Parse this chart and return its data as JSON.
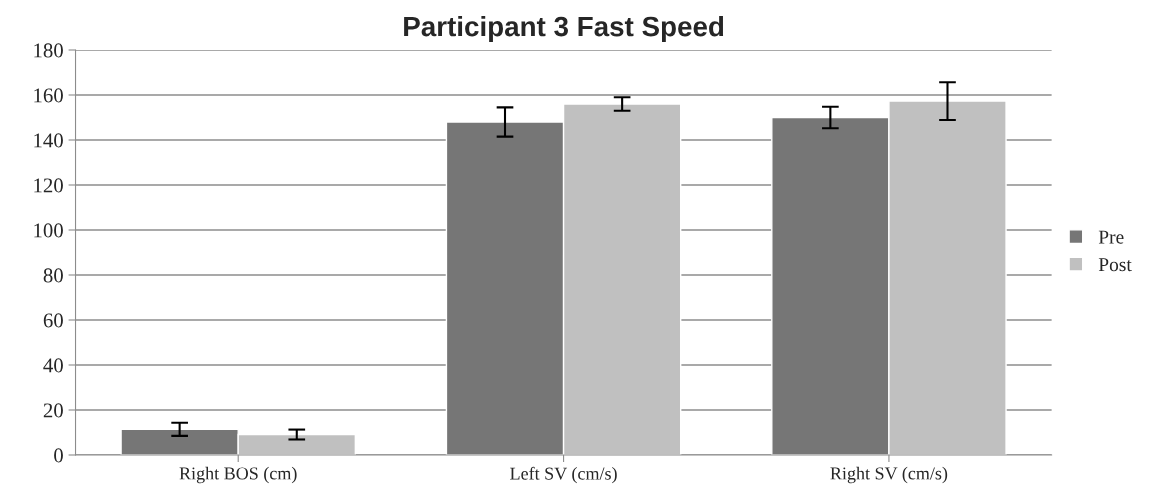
{
  "chart_data": {
    "type": "bar",
    "title": "Participant 3 Fast Speed",
    "categories": [
      "Right BOS (cm)",
      "Left SV (cm/s)",
      "Right SV (cm/s)"
    ],
    "series": [
      {
        "name": "Pre",
        "color": "#767676",
        "values": [
          11.4,
          148,
          150
        ],
        "errors": [
          2.9,
          6.5,
          4.8
        ]
      },
      {
        "name": "Post",
        "color": "#c0c0c0",
        "values": [
          9.1,
          156,
          157.3
        ],
        "errors": [
          2.2,
          3,
          8.4
        ]
      }
    ],
    "ylim": [
      0,
      180
    ],
    "yticks": [
      0,
      20,
      40,
      60,
      80,
      100,
      120,
      140,
      160,
      180
    ],
    "grid": "y",
    "legend": "right"
  }
}
